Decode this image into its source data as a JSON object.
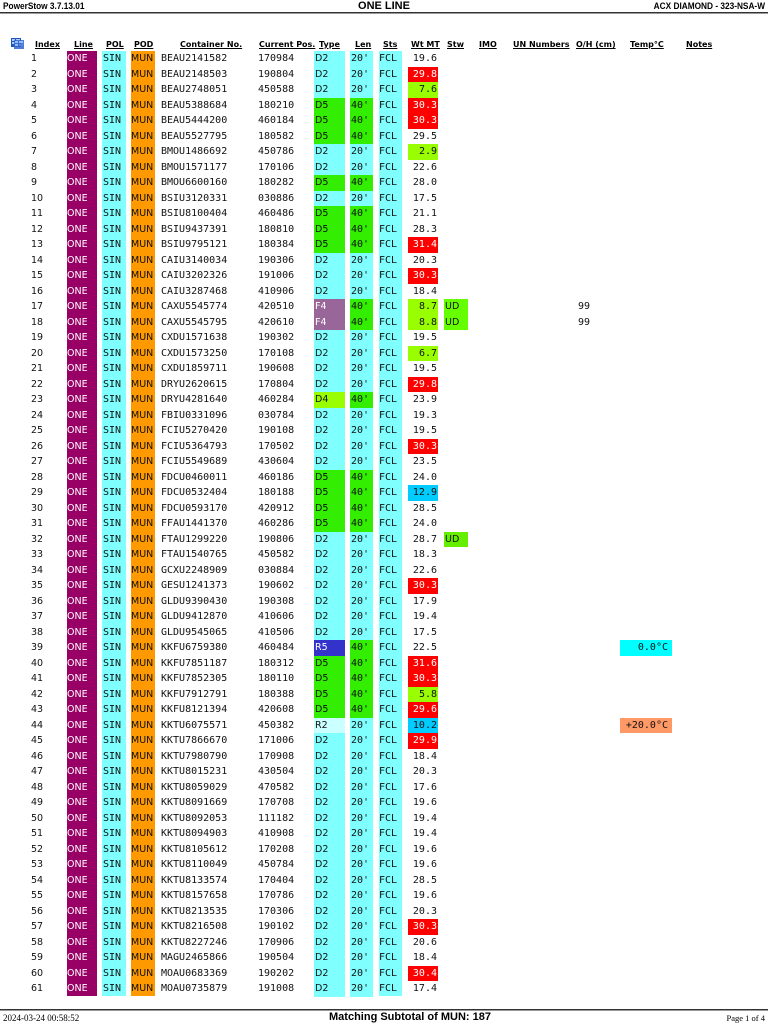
{
  "header": {
    "app_version": "PowerStow 3.7.13.01",
    "title": "ONE LINE",
    "vessel_voyage": "ACX DIAMOND - 323-NSA-W"
  },
  "columns": {
    "index": "Index",
    "line": "Line",
    "pol": "POL",
    "pod": "POD",
    "container_no": "Container No.",
    "current_pos": "Current Pos.",
    "type": "Type",
    "len": "Len",
    "sts": "Sts",
    "wt_mt": "Wt MT",
    "stw": "Stw",
    "imo": "IMO",
    "un_numbers": "UN Numbers",
    "oh_cm": "O/H (cm)",
    "temp_c": "Temp°C",
    "notes": "Notes"
  },
  "icons": {
    "grid_icon": "table-grid-icon"
  },
  "colors": {
    "line_bg": "#990066",
    "pol_bg": "#80ffff",
    "pod_bg": "#ff9900",
    "type_d2_bg": "#80ffff",
    "type_d5_bg": "#33ee00",
    "type_d4_bg": "#99ff00",
    "type_f4_bg": "#996699",
    "type_r5_bg": "#3333cc",
    "type_r2_bg": "#ccffff",
    "len_20_bg": "#80ffff",
    "len_40_bg": "#33ee00",
    "sts_bg": "#80ffff",
    "wt_heavy_bg": "#ff0000",
    "wt_light_bg": "#99ff00",
    "wt_reefer_bg": "#00ccff",
    "stw_ud_bg": "#66ff00",
    "temp_cold_bg": "#00ffff",
    "temp_warm_bg": "#ff9966"
  },
  "rows": [
    {
      "index": "1",
      "line": "ONE",
      "pol": "SIN",
      "pod": "MUN",
      "container": "BEAU2141582",
      "pos": "170984",
      "type": "D2",
      "len": "20'",
      "sts": "FCL",
      "wt": "19.6",
      "wt_flag": "",
      "stw": "",
      "oh": "",
      "temp": ""
    },
    {
      "index": "2",
      "line": "ONE",
      "pol": "SIN",
      "pod": "MUN",
      "container": "BEAU2148503",
      "pos": "190804",
      "type": "D2",
      "len": "20'",
      "sts": "FCL",
      "wt": "29.8",
      "wt_flag": "heavy",
      "stw": "",
      "oh": "",
      "temp": ""
    },
    {
      "index": "3",
      "line": "ONE",
      "pol": "SIN",
      "pod": "MUN",
      "container": "BEAU2748051",
      "pos": "450588",
      "type": "D2",
      "len": "20'",
      "sts": "FCL",
      "wt": "7.6",
      "wt_flag": "light",
      "stw": "",
      "oh": "",
      "temp": ""
    },
    {
      "index": "4",
      "line": "ONE",
      "pol": "SIN",
      "pod": "MUN",
      "container": "BEAU5388684",
      "pos": "180210",
      "type": "D5",
      "len": "40'",
      "sts": "FCL",
      "wt": "30.3",
      "wt_flag": "heavy",
      "stw": "",
      "oh": "",
      "temp": ""
    },
    {
      "index": "5",
      "line": "ONE",
      "pol": "SIN",
      "pod": "MUN",
      "container": "BEAU5444200",
      "pos": "460184",
      "type": "D5",
      "len": "40'",
      "sts": "FCL",
      "wt": "30.3",
      "wt_flag": "heavy",
      "stw": "",
      "oh": "",
      "temp": ""
    },
    {
      "index": "6",
      "line": "ONE",
      "pol": "SIN",
      "pod": "MUN",
      "container": "BEAU5527795",
      "pos": "180582",
      "type": "D5",
      "len": "40'",
      "sts": "FCL",
      "wt": "29.5",
      "wt_flag": "",
      "stw": "",
      "oh": "",
      "temp": ""
    },
    {
      "index": "7",
      "line": "ONE",
      "pol": "SIN",
      "pod": "MUN",
      "container": "BMOU1486692",
      "pos": "450786",
      "type": "D2",
      "len": "20'",
      "sts": "FCL",
      "wt": "2.9",
      "wt_flag": "light",
      "stw": "",
      "oh": "",
      "temp": ""
    },
    {
      "index": "8",
      "line": "ONE",
      "pol": "SIN",
      "pod": "MUN",
      "container": "BMOU1571177",
      "pos": "170106",
      "type": "D2",
      "len": "20'",
      "sts": "FCL",
      "wt": "22.6",
      "wt_flag": "",
      "stw": "",
      "oh": "",
      "temp": ""
    },
    {
      "index": "9",
      "line": "ONE",
      "pol": "SIN",
      "pod": "MUN",
      "container": "BMOU6600160",
      "pos": "180282",
      "type": "D5",
      "len": "40'",
      "sts": "FCL",
      "wt": "28.0",
      "wt_flag": "",
      "stw": "",
      "oh": "",
      "temp": ""
    },
    {
      "index": "10",
      "line": "ONE",
      "pol": "SIN",
      "pod": "MUN",
      "container": "BSIU3120331",
      "pos": "030886",
      "type": "D2",
      "len": "20'",
      "sts": "FCL",
      "wt": "17.5",
      "wt_flag": "",
      "stw": "",
      "oh": "",
      "temp": ""
    },
    {
      "index": "11",
      "line": "ONE",
      "pol": "SIN",
      "pod": "MUN",
      "container": "BSIU8100404",
      "pos": "460486",
      "type": "D5",
      "len": "40'",
      "sts": "FCL",
      "wt": "21.1",
      "wt_flag": "",
      "stw": "",
      "oh": "",
      "temp": ""
    },
    {
      "index": "12",
      "line": "ONE",
      "pol": "SIN",
      "pod": "MUN",
      "container": "BSIU9437391",
      "pos": "180810",
      "type": "D5",
      "len": "40'",
      "sts": "FCL",
      "wt": "28.3",
      "wt_flag": "",
      "stw": "",
      "oh": "",
      "temp": ""
    },
    {
      "index": "13",
      "line": "ONE",
      "pol": "SIN",
      "pod": "MUN",
      "container": "BSIU9795121",
      "pos": "180384",
      "type": "D5",
      "len": "40'",
      "sts": "FCL",
      "wt": "31.4",
      "wt_flag": "heavy",
      "stw": "",
      "oh": "",
      "temp": ""
    },
    {
      "index": "14",
      "line": "ONE",
      "pol": "SIN",
      "pod": "MUN",
      "container": "CAIU3140034",
      "pos": "190306",
      "type": "D2",
      "len": "20'",
      "sts": "FCL",
      "wt": "20.3",
      "wt_flag": "",
      "stw": "",
      "oh": "",
      "temp": ""
    },
    {
      "index": "15",
      "line": "ONE",
      "pol": "SIN",
      "pod": "MUN",
      "container": "CAIU3202326",
      "pos": "191006",
      "type": "D2",
      "len": "20'",
      "sts": "FCL",
      "wt": "30.3",
      "wt_flag": "heavy",
      "stw": "",
      "oh": "",
      "temp": ""
    },
    {
      "index": "16",
      "line": "ONE",
      "pol": "SIN",
      "pod": "MUN",
      "container": "CAIU3287468",
      "pos": "410906",
      "type": "D2",
      "len": "20'",
      "sts": "FCL",
      "wt": "18.4",
      "wt_flag": "",
      "stw": "",
      "oh": "",
      "temp": ""
    },
    {
      "index": "17",
      "line": "ONE",
      "pol": "SIN",
      "pod": "MUN",
      "container": "CAXU5545774",
      "pos": "420510",
      "type": "F4",
      "len": "40'",
      "sts": "FCL",
      "wt": "8.7",
      "wt_flag": "light",
      "stw": "UD",
      "oh": "99",
      "temp": ""
    },
    {
      "index": "18",
      "line": "ONE",
      "pol": "SIN",
      "pod": "MUN",
      "container": "CAXU5545795",
      "pos": "420610",
      "type": "F4",
      "len": "40'",
      "sts": "FCL",
      "wt": "8.8",
      "wt_flag": "light",
      "stw": "UD",
      "oh": "99",
      "temp": ""
    },
    {
      "index": "19",
      "line": "ONE",
      "pol": "SIN",
      "pod": "MUN",
      "container": "CXDU1571638",
      "pos": "190302",
      "type": "D2",
      "len": "20'",
      "sts": "FCL",
      "wt": "19.5",
      "wt_flag": "",
      "stw": "",
      "oh": "",
      "temp": ""
    },
    {
      "index": "20",
      "line": "ONE",
      "pol": "SIN",
      "pod": "MUN",
      "container": "CXDU1573250",
      "pos": "170108",
      "type": "D2",
      "len": "20'",
      "sts": "FCL",
      "wt": "6.7",
      "wt_flag": "light",
      "stw": "",
      "oh": "",
      "temp": ""
    },
    {
      "index": "21",
      "line": "ONE",
      "pol": "SIN",
      "pod": "MUN",
      "container": "CXDU1859711",
      "pos": "190608",
      "type": "D2",
      "len": "20'",
      "sts": "FCL",
      "wt": "19.5",
      "wt_flag": "",
      "stw": "",
      "oh": "",
      "temp": ""
    },
    {
      "index": "22",
      "line": "ONE",
      "pol": "SIN",
      "pod": "MUN",
      "container": "DRYU2620615",
      "pos": "170804",
      "type": "D2",
      "len": "20'",
      "sts": "FCL",
      "wt": "29.8",
      "wt_flag": "heavy",
      "stw": "",
      "oh": "",
      "temp": ""
    },
    {
      "index": "23",
      "line": "ONE",
      "pol": "SIN",
      "pod": "MUN",
      "container": "DRYU4281640",
      "pos": "460284",
      "type": "D4",
      "len": "40'",
      "sts": "FCL",
      "wt": "23.9",
      "wt_flag": "",
      "stw": "",
      "oh": "",
      "temp": ""
    },
    {
      "index": "24",
      "line": "ONE",
      "pol": "SIN",
      "pod": "MUN",
      "container": "FBIU0331096",
      "pos": "030784",
      "type": "D2",
      "len": "20'",
      "sts": "FCL",
      "wt": "19.3",
      "wt_flag": "",
      "stw": "",
      "oh": "",
      "temp": ""
    },
    {
      "index": "25",
      "line": "ONE",
      "pol": "SIN",
      "pod": "MUN",
      "container": "FCIU5270420",
      "pos": "190108",
      "type": "D2",
      "len": "20'",
      "sts": "FCL",
      "wt": "19.5",
      "wt_flag": "",
      "stw": "",
      "oh": "",
      "temp": ""
    },
    {
      "index": "26",
      "line": "ONE",
      "pol": "SIN",
      "pod": "MUN",
      "container": "FCIU5364793",
      "pos": "170502",
      "type": "D2",
      "len": "20'",
      "sts": "FCL",
      "wt": "30.3",
      "wt_flag": "heavy",
      "stw": "",
      "oh": "",
      "temp": ""
    },
    {
      "index": "27",
      "line": "ONE",
      "pol": "SIN",
      "pod": "MUN",
      "container": "FCIU5549689",
      "pos": "430604",
      "type": "D2",
      "len": "20'",
      "sts": "FCL",
      "wt": "23.5",
      "wt_flag": "",
      "stw": "",
      "oh": "",
      "temp": ""
    },
    {
      "index": "28",
      "line": "ONE",
      "pol": "SIN",
      "pod": "MUN",
      "container": "FDCU0460011",
      "pos": "460186",
      "type": "D5",
      "len": "40'",
      "sts": "FCL",
      "wt": "24.0",
      "wt_flag": "",
      "stw": "",
      "oh": "",
      "temp": ""
    },
    {
      "index": "29",
      "line": "ONE",
      "pol": "SIN",
      "pod": "MUN",
      "container": "FDCU0532404",
      "pos": "180188",
      "type": "D5",
      "len": "40'",
      "sts": "FCL",
      "wt": "12.9",
      "wt_flag": "reefer",
      "stw": "",
      "oh": "",
      "temp": ""
    },
    {
      "index": "30",
      "line": "ONE",
      "pol": "SIN",
      "pod": "MUN",
      "container": "FDCU0593170",
      "pos": "420912",
      "type": "D5",
      "len": "40'",
      "sts": "FCL",
      "wt": "28.5",
      "wt_flag": "",
      "stw": "",
      "oh": "",
      "temp": ""
    },
    {
      "index": "31",
      "line": "ONE",
      "pol": "SIN",
      "pod": "MUN",
      "container": "FFAU1441370",
      "pos": "460286",
      "type": "D5",
      "len": "40'",
      "sts": "FCL",
      "wt": "24.0",
      "wt_flag": "",
      "stw": "",
      "oh": "",
      "temp": ""
    },
    {
      "index": "32",
      "line": "ONE",
      "pol": "SIN",
      "pod": "MUN",
      "container": "FTAU1299220",
      "pos": "190806",
      "type": "D2",
      "len": "20'",
      "sts": "FCL",
      "wt": "28.7",
      "wt_flag": "",
      "stw": "UD",
      "oh": "",
      "temp": ""
    },
    {
      "index": "33",
      "line": "ONE",
      "pol": "SIN",
      "pod": "MUN",
      "container": "FTAU1540765",
      "pos": "450582",
      "type": "D2",
      "len": "20'",
      "sts": "FCL",
      "wt": "18.3",
      "wt_flag": "",
      "stw": "",
      "oh": "",
      "temp": ""
    },
    {
      "index": "34",
      "line": "ONE",
      "pol": "SIN",
      "pod": "MUN",
      "container": "GCXU2248909",
      "pos": "030884",
      "type": "D2",
      "len": "20'",
      "sts": "FCL",
      "wt": "22.6",
      "wt_flag": "",
      "stw": "",
      "oh": "",
      "temp": ""
    },
    {
      "index": "35",
      "line": "ONE",
      "pol": "SIN",
      "pod": "MUN",
      "container": "GESU1241373",
      "pos": "190602",
      "type": "D2",
      "len": "20'",
      "sts": "FCL",
      "wt": "30.3",
      "wt_flag": "heavy",
      "stw": "",
      "oh": "",
      "temp": ""
    },
    {
      "index": "36",
      "line": "ONE",
      "pol": "SIN",
      "pod": "MUN",
      "container": "GLDU9390430",
      "pos": "190308",
      "type": "D2",
      "len": "20'",
      "sts": "FCL",
      "wt": "17.9",
      "wt_flag": "",
      "stw": "",
      "oh": "",
      "temp": ""
    },
    {
      "index": "37",
      "line": "ONE",
      "pol": "SIN",
      "pod": "MUN",
      "container": "GLDU9412870",
      "pos": "410606",
      "type": "D2",
      "len": "20'",
      "sts": "FCL",
      "wt": "19.4",
      "wt_flag": "",
      "stw": "",
      "oh": "",
      "temp": ""
    },
    {
      "index": "38",
      "line": "ONE",
      "pol": "SIN",
      "pod": "MUN",
      "container": "GLDU9545065",
      "pos": "410506",
      "type": "D2",
      "len": "20'",
      "sts": "FCL",
      "wt": "17.5",
      "wt_flag": "",
      "stw": "",
      "oh": "",
      "temp": ""
    },
    {
      "index": "39",
      "line": "ONE",
      "pol": "SIN",
      "pod": "MUN",
      "container": "KKFU6759380",
      "pos": "460484",
      "type": "R5",
      "len": "40'",
      "sts": "FCL",
      "wt": "22.5",
      "wt_flag": "",
      "stw": "",
      "oh": "",
      "temp": "0.0°C",
      "temp_flag": "cold"
    },
    {
      "index": "40",
      "line": "ONE",
      "pol": "SIN",
      "pod": "MUN",
      "container": "KKFU7851187",
      "pos": "180312",
      "type": "D5",
      "len": "40'",
      "sts": "FCL",
      "wt": "31.6",
      "wt_flag": "heavy",
      "stw": "",
      "oh": "",
      "temp": ""
    },
    {
      "index": "41",
      "line": "ONE",
      "pol": "SIN",
      "pod": "MUN",
      "container": "KKFU7852305",
      "pos": "180110",
      "type": "D5",
      "len": "40'",
      "sts": "FCL",
      "wt": "30.3",
      "wt_flag": "heavy",
      "stw": "",
      "oh": "",
      "temp": ""
    },
    {
      "index": "42",
      "line": "ONE",
      "pol": "SIN",
      "pod": "MUN",
      "container": "KKFU7912791",
      "pos": "180388",
      "type": "D5",
      "len": "40'",
      "sts": "FCL",
      "wt": "5.8",
      "wt_flag": "light",
      "stw": "",
      "oh": "",
      "temp": ""
    },
    {
      "index": "43",
      "line": "ONE",
      "pol": "SIN",
      "pod": "MUN",
      "container": "KKFU8121394",
      "pos": "420608",
      "type": "D5",
      "len": "40'",
      "sts": "FCL",
      "wt": "29.6",
      "wt_flag": "heavy",
      "stw": "",
      "oh": "",
      "temp": ""
    },
    {
      "index": "44",
      "line": "ONE",
      "pol": "SIN",
      "pod": "MUN",
      "container": "KKTU6075571",
      "pos": "450382",
      "type": "R2",
      "len": "20'",
      "sts": "FCL",
      "wt": "10.2",
      "wt_flag": "reefer",
      "stw": "",
      "oh": "",
      "temp": "+20.0°C",
      "temp_flag": "warm"
    },
    {
      "index": "45",
      "line": "ONE",
      "pol": "SIN",
      "pod": "MUN",
      "container": "KKTU7866670",
      "pos": "171006",
      "type": "D2",
      "len": "20'",
      "sts": "FCL",
      "wt": "29.9",
      "wt_flag": "heavy",
      "stw": "",
      "oh": "",
      "temp": ""
    },
    {
      "index": "46",
      "line": "ONE",
      "pol": "SIN",
      "pod": "MUN",
      "container": "KKTU7980790",
      "pos": "170908",
      "type": "D2",
      "len": "20'",
      "sts": "FCL",
      "wt": "18.4",
      "wt_flag": "",
      "stw": "",
      "oh": "",
      "temp": ""
    },
    {
      "index": "47",
      "line": "ONE",
      "pol": "SIN",
      "pod": "MUN",
      "container": "KKTU8015231",
      "pos": "430504",
      "type": "D2",
      "len": "20'",
      "sts": "FCL",
      "wt": "20.3",
      "wt_flag": "",
      "stw": "",
      "oh": "",
      "temp": ""
    },
    {
      "index": "48",
      "line": "ONE",
      "pol": "SIN",
      "pod": "MUN",
      "container": "KKTU8059029",
      "pos": "470582",
      "type": "D2",
      "len": "20'",
      "sts": "FCL",
      "wt": "17.6",
      "wt_flag": "",
      "stw": "",
      "oh": "",
      "temp": ""
    },
    {
      "index": "49",
      "line": "ONE",
      "pol": "SIN",
      "pod": "MUN",
      "container": "KKTU8091669",
      "pos": "170708",
      "type": "D2",
      "len": "20'",
      "sts": "FCL",
      "wt": "19.6",
      "wt_flag": "",
      "stw": "",
      "oh": "",
      "temp": ""
    },
    {
      "index": "50",
      "line": "ONE",
      "pol": "SIN",
      "pod": "MUN",
      "container": "KKTU8092053",
      "pos": "111182",
      "type": "D2",
      "len": "20'",
      "sts": "FCL",
      "wt": "19.4",
      "wt_flag": "",
      "stw": "",
      "oh": "",
      "temp": ""
    },
    {
      "index": "51",
      "line": "ONE",
      "pol": "SIN",
      "pod": "MUN",
      "container": "KKTU8094903",
      "pos": "410908",
      "type": "D2",
      "len": "20'",
      "sts": "FCL",
      "wt": "19.4",
      "wt_flag": "",
      "stw": "",
      "oh": "",
      "temp": ""
    },
    {
      "index": "52",
      "line": "ONE",
      "pol": "SIN",
      "pod": "MUN",
      "container": "KKTU8105612",
      "pos": "170208",
      "type": "D2",
      "len": "20'",
      "sts": "FCL",
      "wt": "19.6",
      "wt_flag": "",
      "stw": "",
      "oh": "",
      "temp": ""
    },
    {
      "index": "53",
      "line": "ONE",
      "pol": "SIN",
      "pod": "MUN",
      "container": "KKTU8110049",
      "pos": "450784",
      "type": "D2",
      "len": "20'",
      "sts": "FCL",
      "wt": "19.6",
      "wt_flag": "",
      "stw": "",
      "oh": "",
      "temp": ""
    },
    {
      "index": "54",
      "line": "ONE",
      "pol": "SIN",
      "pod": "MUN",
      "container": "KKTU8133574",
      "pos": "170404",
      "type": "D2",
      "len": "20'",
      "sts": "FCL",
      "wt": "28.5",
      "wt_flag": "",
      "stw": "",
      "oh": "",
      "temp": ""
    },
    {
      "index": "55",
      "line": "ONE",
      "pol": "SIN",
      "pod": "MUN",
      "container": "KKTU8157658",
      "pos": "170786",
      "type": "D2",
      "len": "20'",
      "sts": "FCL",
      "wt": "19.6",
      "wt_flag": "",
      "stw": "",
      "oh": "",
      "temp": ""
    },
    {
      "index": "56",
      "line": "ONE",
      "pol": "SIN",
      "pod": "MUN",
      "container": "KKTU8213535",
      "pos": "170306",
      "type": "D2",
      "len": "20'",
      "sts": "FCL",
      "wt": "20.3",
      "wt_flag": "",
      "stw": "",
      "oh": "",
      "temp": ""
    },
    {
      "index": "57",
      "line": "ONE",
      "pol": "SIN",
      "pod": "MUN",
      "container": "KKTU8216508",
      "pos": "190102",
      "type": "D2",
      "len": "20'",
      "sts": "FCL",
      "wt": "30.3",
      "wt_flag": "heavy",
      "stw": "",
      "oh": "",
      "temp": ""
    },
    {
      "index": "58",
      "line": "ONE",
      "pol": "SIN",
      "pod": "MUN",
      "container": "KKTU8227246",
      "pos": "170906",
      "type": "D2",
      "len": "20'",
      "sts": "FCL",
      "wt": "20.6",
      "wt_flag": "",
      "stw": "",
      "oh": "",
      "temp": ""
    },
    {
      "index": "59",
      "line": "ONE",
      "pol": "SIN",
      "pod": "MUN",
      "container": "MAGU2465866",
      "pos": "190504",
      "type": "D2",
      "len": "20'",
      "sts": "FCL",
      "wt": "18.4",
      "wt_flag": "",
      "stw": "",
      "oh": "",
      "temp": ""
    },
    {
      "index": "60",
      "line": "ONE",
      "pol": "SIN",
      "pod": "MUN",
      "container": "MOAU0683369",
      "pos": "190202",
      "type": "D2",
      "len": "20'",
      "sts": "FCL",
      "wt": "30.4",
      "wt_flag": "heavy",
      "stw": "",
      "oh": "",
      "temp": ""
    },
    {
      "index": "61",
      "line": "ONE",
      "pol": "SIN",
      "pod": "MUN",
      "container": "MOAU0735879",
      "pos": "191008",
      "type": "D2",
      "len": "20'",
      "sts": "FCL",
      "wt": "17.4",
      "wt_flag": "",
      "stw": "",
      "oh": "",
      "temp": ""
    }
  ],
  "footer": {
    "timestamp": "2024-03-24   00:58:52",
    "subtotal": "Matching Subtotal of MUN: 187",
    "page": "Page 1 of 4"
  }
}
